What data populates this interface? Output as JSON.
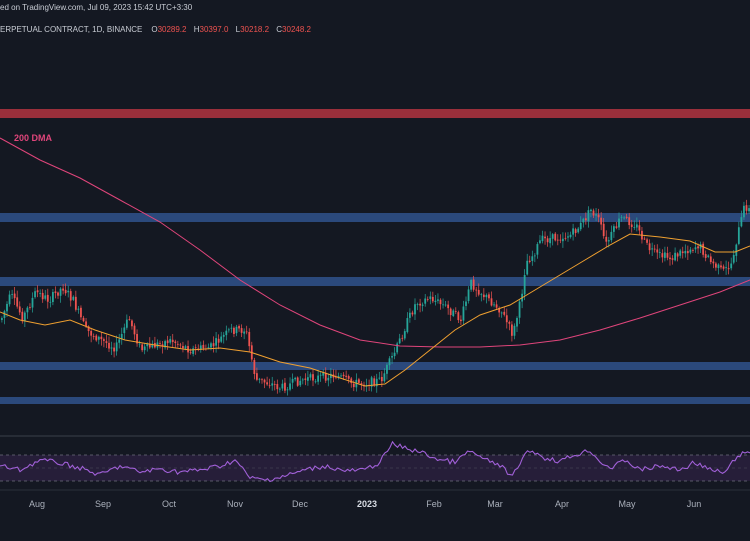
{
  "header": {
    "published_line": "ed on TradingView.com, Jul 09, 2023 15:42 UTC+3:30",
    "symbol_line": "ERPETUAL CONTRACT, 1D, BINANCE",
    "ohlc": [
      {
        "label": "O",
        "value": "30289.2"
      },
      {
        "label": "H",
        "value": "30397.0"
      },
      {
        "label": "L",
        "value": "30218.2"
      },
      {
        "label": "C",
        "value": "30248.2"
      }
    ]
  },
  "ma_label": "200 DMA",
  "chart_data": {
    "type": "candlestick",
    "x_axis_labels": [
      "Aug",
      "Sep",
      "Oct",
      "Nov",
      "Dec",
      "2023",
      "Feb",
      "Mar",
      "Apr",
      "May",
      "Jun"
    ],
    "bold_labels": [
      "2023"
    ],
    "colors": {
      "background": "#141822",
      "up": "#26a69a",
      "down": "#ef5350",
      "ma_fast": "#f0a030",
      "ma_slow": "#e0457b",
      "rsi": "#a160d8",
      "resistance_zone": "#a8323e",
      "support_zone": "#2e4f86"
    },
    "indicators": [
      "200 DMA",
      "RSI"
    ]
  }
}
